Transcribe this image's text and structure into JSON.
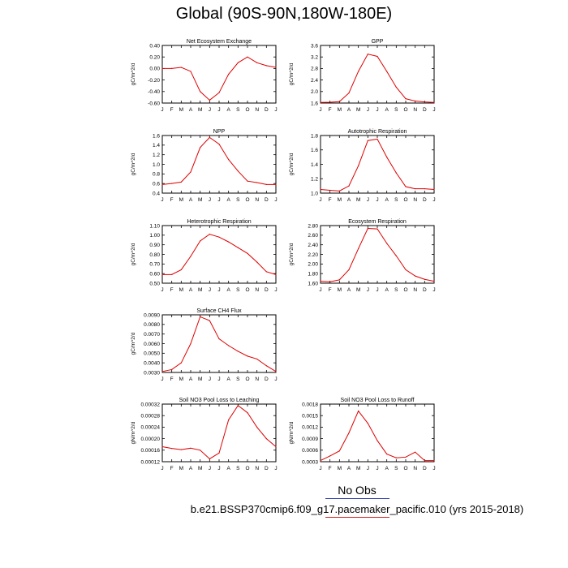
{
  "page_title": "Global (90S-90N,180W-180E)",
  "legend_text": "No Obs",
  "caption": "b.e21.BSSP370cmip6.f09_g17.pacemaker_pacific.010 (yrs 2015-2018)",
  "colors": {
    "series": "#dd0000",
    "legend_blue": "#2233aa",
    "legend_red": "#cc2222"
  },
  "chart_data": [
    {
      "type": "line",
      "title": "Net Ecosystem Exchange",
      "ylabel": "gC/m^2/d",
      "categories": [
        "J",
        "F",
        "M",
        "A",
        "M",
        "J",
        "J",
        "A",
        "S",
        "O",
        "N",
        "D",
        "J"
      ],
      "ylim": [
        -0.6,
        0.4
      ],
      "yticks": [
        "0.40",
        "0.20",
        "0.00",
        "-0.20",
        "-0.40",
        "-0.60"
      ],
      "values": [
        0.0,
        0.0,
        0.02,
        -0.05,
        -0.4,
        -0.55,
        -0.42,
        -0.1,
        0.1,
        0.2,
        0.1,
        0.05,
        0.02
      ]
    },
    {
      "type": "line",
      "title": "GPP",
      "ylabel": "gC/m^2/d",
      "categories": [
        "J",
        "F",
        "M",
        "A",
        "M",
        "J",
        "J",
        "A",
        "S",
        "O",
        "N",
        "D",
        "J"
      ],
      "ylim": [
        1.6,
        3.6
      ],
      "yticks": [
        "3.6",
        "3.2",
        "2.8",
        "2.4",
        "2.0",
        "1.6"
      ],
      "values": [
        1.62,
        1.63,
        1.65,
        1.95,
        2.7,
        3.3,
        3.22,
        2.7,
        2.15,
        1.75,
        1.67,
        1.64,
        1.62
      ]
    },
    {
      "type": "line",
      "title": "NPP",
      "ylabel": "gC/m^2/d",
      "categories": [
        "J",
        "F",
        "M",
        "A",
        "M",
        "J",
        "J",
        "A",
        "S",
        "O",
        "N",
        "D",
        "J"
      ],
      "ylim": [
        0.4,
        1.6
      ],
      "yticks": [
        "1.6",
        "1.4",
        "1.2",
        "1.0",
        "0.8",
        "0.6",
        "0.4"
      ],
      "values": [
        0.58,
        0.6,
        0.63,
        0.84,
        1.35,
        1.56,
        1.42,
        1.1,
        0.86,
        0.65,
        0.62,
        0.58,
        0.58
      ]
    },
    {
      "type": "line",
      "title": "Autotrophic Respiration",
      "ylabel": "gC/m^2/d",
      "categories": [
        "J",
        "F",
        "M",
        "A",
        "M",
        "J",
        "J",
        "A",
        "S",
        "O",
        "N",
        "D",
        "J"
      ],
      "ylim": [
        1.0,
        1.8
      ],
      "yticks": [
        "1.8",
        "1.6",
        "1.4",
        "1.2",
        "1.0"
      ],
      "values": [
        1.05,
        1.04,
        1.03,
        1.1,
        1.38,
        1.73,
        1.75,
        1.5,
        1.28,
        1.09,
        1.06,
        1.06,
        1.05
      ]
    },
    {
      "type": "line",
      "title": "Heterotrophic Respiration",
      "ylabel": "gC/m^2/d",
      "categories": [
        "J",
        "F",
        "M",
        "A",
        "M",
        "J",
        "J",
        "A",
        "S",
        "O",
        "N",
        "D",
        "J"
      ],
      "ylim": [
        0.5,
        1.1
      ],
      "yticks": [
        "1.10",
        "1.00",
        "0.90",
        "0.80",
        "0.70",
        "0.60",
        "0.50"
      ],
      "values": [
        0.59,
        0.59,
        0.64,
        0.78,
        0.94,
        1.01,
        0.98,
        0.93,
        0.87,
        0.81,
        0.72,
        0.62,
        0.59
      ]
    },
    {
      "type": "line",
      "title": "Ecosystem Respiration",
      "ylabel": "gC/m^2/d",
      "categories": [
        "J",
        "F",
        "M",
        "A",
        "M",
        "J",
        "J",
        "A",
        "S",
        "O",
        "N",
        "D",
        "J"
      ],
      "ylim": [
        1.6,
        2.8
      ],
      "yticks": [
        "2.80",
        "2.60",
        "2.40",
        "2.20",
        "2.00",
        "1.80",
        "1.60"
      ],
      "values": [
        1.64,
        1.63,
        1.67,
        1.88,
        2.32,
        2.74,
        2.73,
        2.43,
        2.17,
        1.88,
        1.75,
        1.68,
        1.64
      ]
    },
    {
      "type": "line",
      "title": "Surface CH4 Flux",
      "ylabel": "gC/m^2/d",
      "categories": [
        "J",
        "F",
        "M",
        "A",
        "M",
        "J",
        "J",
        "A",
        "S",
        "O",
        "N",
        "D",
        "J"
      ],
      "ylim": [
        0.003,
        0.009
      ],
      "yticks": [
        "0.0090",
        "0.0080",
        "0.0070",
        "0.0060",
        "0.0050",
        "0.0040",
        "0.0030"
      ],
      "values": [
        0.0031,
        0.0033,
        0.004,
        0.006,
        0.0088,
        0.0084,
        0.0065,
        0.0058,
        0.0052,
        0.0047,
        0.0044,
        0.0037,
        0.0031
      ]
    },
    {
      "type": "line",
      "title": "Soil NO3 Pool Loss to Leaching",
      "ylabel": "gN/m^2/d",
      "categories": [
        "J",
        "F",
        "M",
        "A",
        "M",
        "J",
        "J",
        "A",
        "S",
        "O",
        "N",
        "D",
        "J"
      ],
      "ylim": [
        0.00012,
        0.00032
      ],
      "yticks": [
        "0.00032",
        "0.00028",
        "0.00024",
        "0.00020",
        "0.00016",
        "0.00012"
      ],
      "values": [
        0.000172,
        0.000166,
        0.000162,
        0.000167,
        0.00016,
        0.00013,
        0.00015,
        0.000265,
        0.000315,
        0.00029,
        0.00024,
        0.0002,
        0.000172
      ]
    },
    {
      "type": "line",
      "title": "Soil NO3 Pool Loss to Runoff",
      "ylabel": "gN/m^2/d",
      "categories": [
        "J",
        "F",
        "M",
        "A",
        "M",
        "J",
        "J",
        "A",
        "S",
        "O",
        "N",
        "D",
        "J"
      ],
      "ylim": [
        0.0003,
        0.0018
      ],
      "yticks": [
        "0.0018",
        "0.0015",
        "0.0012",
        "0.0009",
        "0.0006",
        "0.0003"
      ],
      "values": [
        0.00033,
        0.00045,
        0.00058,
        0.00105,
        0.00162,
        0.0013,
        0.00085,
        0.0005,
        0.0004,
        0.00042,
        0.00055,
        0.00033,
        0.00033
      ]
    }
  ]
}
